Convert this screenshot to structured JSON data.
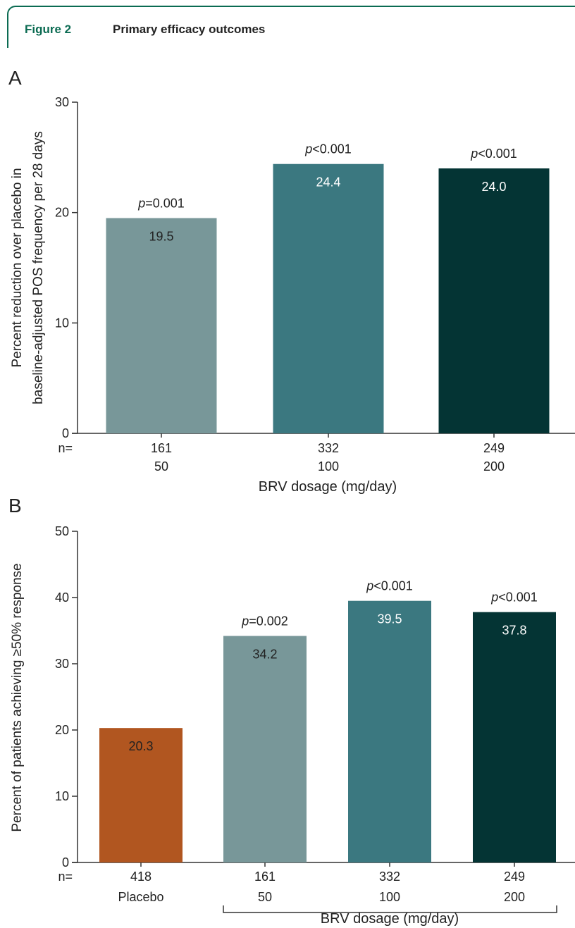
{
  "figure": {
    "number": "Figure 2",
    "title": "Primary efficacy outcomes"
  },
  "chart_data": [
    {
      "panel": "A",
      "type": "bar",
      "ylabel_lines": [
        "Percent reduction over placebo in",
        "baseline-adjusted POS frequency per 28 days"
      ],
      "xlabel": "BRV dosage (mg/day)",
      "ylim": [
        0,
        30
      ],
      "yticks": [
        0,
        10,
        20,
        30
      ],
      "n_prefix": "n=",
      "categories": [
        "50",
        "100",
        "200"
      ],
      "n": [
        "161",
        "332",
        "249"
      ],
      "values": [
        19.5,
        24.4,
        24.0
      ],
      "value_labels": [
        "19.5",
        "24.4",
        "24.0"
      ],
      "pvalues": [
        {
          "p": "p",
          "rest": "=0.001"
        },
        {
          "p": "p",
          "rest": "<0.001"
        },
        {
          "p": "p",
          "rest": "<0.001"
        }
      ],
      "colors": [
        "#789799",
        "#3b7880",
        "#043434"
      ],
      "label_colors": [
        "#222222",
        "#ffffff",
        "#ffffff"
      ]
    },
    {
      "panel": "B",
      "type": "bar",
      "ylabel_lines": [
        "Percent of patients achieving ≥50% response"
      ],
      "xlabel": "BRV dosage (mg/day)",
      "ylim": [
        0,
        50
      ],
      "yticks": [
        0,
        10,
        20,
        30,
        40,
        50
      ],
      "n_prefix": "n=",
      "categories": [
        "Placebo",
        "50",
        "100",
        "200"
      ],
      "n": [
        "418",
        "161",
        "332",
        "249"
      ],
      "values": [
        20.3,
        34.2,
        39.5,
        37.8
      ],
      "value_labels": [
        "20.3",
        "34.2",
        "39.5",
        "37.8"
      ],
      "pvalues": [
        null,
        {
          "p": "p",
          "rest": "=0.002"
        },
        {
          "p": "p",
          "rest": "<0.001"
        },
        {
          "p": "p",
          "rest": "<0.001"
        }
      ],
      "colors": [
        "#b15620",
        "#789799",
        "#3b7880",
        "#043434"
      ],
      "label_colors": [
        "#222222",
        "#222222",
        "#ffffff",
        "#ffffff"
      ]
    }
  ]
}
